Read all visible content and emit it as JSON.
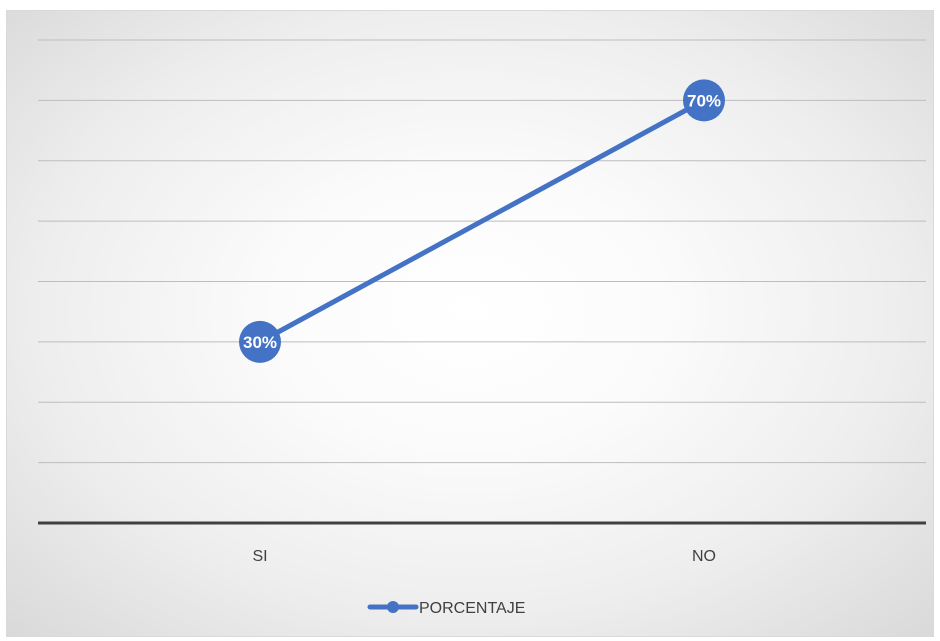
{
  "chart_data": {
    "type": "line",
    "categories": [
      "SI",
      "NO"
    ],
    "series": [
      {
        "name": "PORCENTAJE",
        "values": [
          30,
          70
        ],
        "labels": [
          "30%",
          "70%"
        ],
        "color": "#4472c4"
      }
    ],
    "ylim": [
      0,
      80
    ],
    "grid": true,
    "legend": "bottom",
    "title": "",
    "xlabel": "",
    "ylabel": ""
  }
}
